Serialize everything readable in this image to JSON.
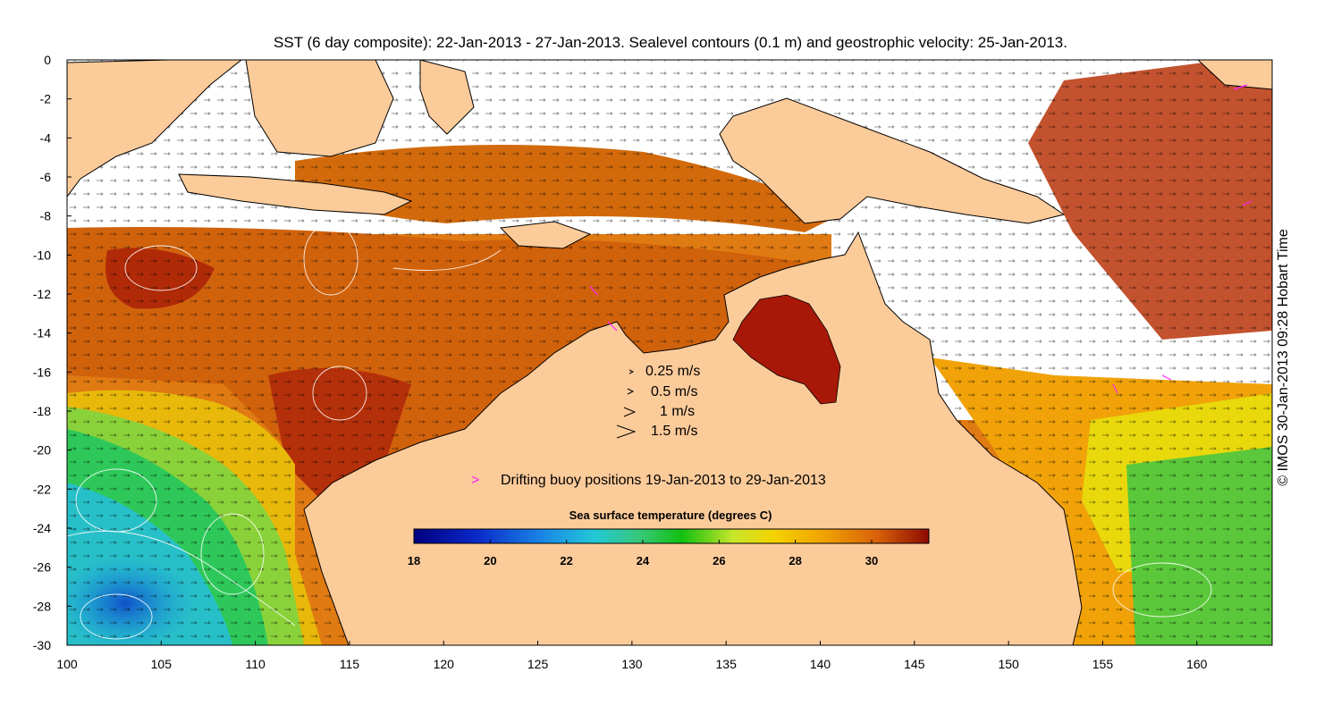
{
  "title": "SST (6 day composite): 22-Jan-2013 - 27-Jan-2013. Sealevel contours (0.1 m) and geostrophic velocity: 25-Jan-2013.",
  "credit": "© IMOS 30-Jan-2013 09:28 Hobart Time",
  "axes": {
    "x_ticks": [
      "100",
      "105",
      "110",
      "115",
      "120",
      "125",
      "130",
      "135",
      "140",
      "145",
      "150",
      "155",
      "160"
    ],
    "y_ticks": [
      "0",
      "-2",
      "-4",
      "-6",
      "-8",
      "-10",
      "-12",
      "-14",
      "-16",
      "-18",
      "-20",
      "-22",
      "-24",
      "-26",
      "-28",
      "-30"
    ],
    "lon_range": [
      100,
      164
    ],
    "lat_range": [
      -30,
      0
    ]
  },
  "velocity_legend": [
    "0.25 m/s",
    "0.5 m/s",
    "1 m/s",
    "1.5 m/s"
  ],
  "buoy_legend": {
    "symbol": ">",
    "label": "Drifting buoy positions 19-Jan-2013 to 29-Jan-2013",
    "color": "#ff22ff"
  },
  "colorbar": {
    "title": "Sea surface temperature (degrees C)",
    "ticks": [
      "18",
      "20",
      "22",
      "24",
      "26",
      "28",
      "30"
    ],
    "range": [
      18,
      31.5
    ]
  },
  "colors": {
    "land": "#fccb9a",
    "warm": "#c0440c",
    "hot": "#a01204",
    "mid": "#e8860a",
    "cool_green": "#3cc83c",
    "cool_blue": "#1870d8"
  }
}
